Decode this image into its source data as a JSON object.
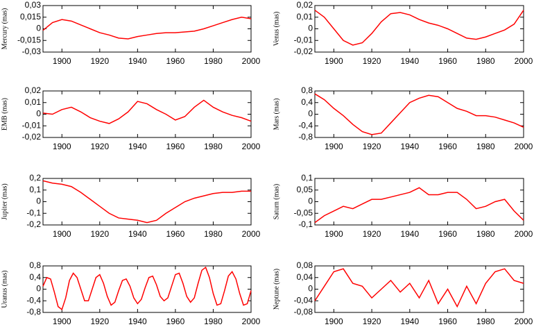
{
  "chart_data": [
    {
      "type": "line",
      "y_label": "Mercury (mas)",
      "xlim": [
        1890,
        2000
      ],
      "xticks": [
        1900,
        1920,
        1940,
        1960,
        1980,
        2000
      ],
      "ylim": [
        -0.03,
        0.03
      ],
      "yticks": [
        {
          "value": 0.03,
          "label": "0,03"
        },
        {
          "value": 0.015,
          "label": "0,015"
        },
        0,
        {
          "value": -0.015,
          "label": "-0,015"
        },
        {
          "value": -0.03,
          "label": "-0,03"
        }
      ],
      "x": [
        1890,
        1895,
        1900,
        1905,
        1910,
        1915,
        1920,
        1925,
        1930,
        1935,
        1940,
        1945,
        1950,
        1955,
        1960,
        1965,
        1970,
        1975,
        1980,
        1985,
        1990,
        1995,
        2000
      ],
      "series": [
        {
          "color": "#ff0000",
          "values": [
            -0.002,
            0.008,
            0.012,
            0.01,
            0.005,
            0,
            -0.005,
            -0.008,
            -0.012,
            -0.013,
            -0.01,
            -0.008,
            -0.006,
            -0.005,
            -0.005,
            -0.004,
            -0.003,
            0,
            0.004,
            0.008,
            0.012,
            0.015,
            0.013
          ]
        }
      ]
    },
    {
      "type": "line",
      "y_label": "Venus (mas)",
      "xlim": [
        1890,
        2000
      ],
      "xticks": [
        1900,
        1920,
        1940,
        1960,
        1980,
        2000
      ],
      "ylim": [
        -0.02,
        0.02
      ],
      "yticks": [
        {
          "value": 0.02,
          "label": "0,02"
        },
        {
          "value": 0.01,
          "label": "0,01"
        },
        0,
        {
          "value": -0.01,
          "label": "-0,01"
        },
        {
          "value": -0.02,
          "label": "-0,02"
        }
      ],
      "x": [
        1890,
        1895,
        1900,
        1905,
        1910,
        1915,
        1920,
        1925,
        1930,
        1935,
        1940,
        1945,
        1950,
        1955,
        1960,
        1965,
        1970,
        1975,
        1980,
        1985,
        1990,
        1995,
        2000
      ],
      "series": [
        {
          "color": "#ff0000",
          "values": [
            0.016,
            0.01,
            0,
            -0.01,
            -0.014,
            -0.012,
            -0.004,
            0.006,
            0.013,
            0.014,
            0.012,
            0.008,
            0.005,
            0.003,
            0,
            -0.004,
            -0.008,
            -0.009,
            -0.007,
            -0.004,
            -0.001,
            0.004,
            0.016
          ]
        }
      ]
    },
    {
      "type": "line",
      "y_label": "EMB (mas)",
      "xlim": [
        1890,
        2000
      ],
      "xticks": [
        1900,
        1920,
        1940,
        1960,
        1980,
        2000
      ],
      "ylim": [
        -0.02,
        0.02
      ],
      "yticks": [
        {
          "value": 0.02,
          "label": "0,02"
        },
        {
          "value": 0.01,
          "label": "0,01"
        },
        0,
        {
          "value": -0.01,
          "label": "-0,01"
        },
        {
          "value": -0.02,
          "label": "-0,02"
        }
      ],
      "x": [
        1890,
        1895,
        1900,
        1905,
        1910,
        1915,
        1920,
        1925,
        1930,
        1935,
        1940,
        1945,
        1950,
        1955,
        1960,
        1965,
        1970,
        1975,
        1980,
        1985,
        1990,
        1995,
        2000
      ],
      "series": [
        {
          "color": "#ff0000",
          "values": [
            0.001,
            0,
            0.004,
            0.006,
            0.002,
            -0.003,
            -0.006,
            -0.008,
            -0.004,
            0.002,
            0.011,
            0.009,
            0.004,
            0,
            -0.005,
            -0.002,
            0.006,
            0.012,
            0.006,
            0.002,
            -0.001,
            -0.003,
            -0.006
          ]
        }
      ]
    },
    {
      "type": "line",
      "y_label": "Mars (mas)",
      "xlim": [
        1890,
        2000
      ],
      "xticks": [
        1900,
        1920,
        1940,
        1960,
        1980,
        2000
      ],
      "ylim": [
        -0.8,
        0.8
      ],
      "yticks": [
        {
          "value": 0.8,
          "label": "0,8"
        },
        {
          "value": 0.4,
          "label": "0,4"
        },
        0,
        {
          "value": -0.4,
          "label": "-0,4"
        },
        {
          "value": -0.8,
          "label": "-0,8"
        }
      ],
      "x": [
        1890,
        1895,
        1900,
        1905,
        1910,
        1915,
        1920,
        1925,
        1930,
        1935,
        1940,
        1945,
        1950,
        1955,
        1960,
        1965,
        1970,
        1975,
        1980,
        1985,
        1990,
        1995,
        2000
      ],
      "series": [
        {
          "color": "#ff0000",
          "values": [
            0.7,
            0.5,
            0.2,
            -0.05,
            -0.35,
            -0.6,
            -0.7,
            -0.65,
            -0.3,
            0.05,
            0.4,
            0.55,
            0.65,
            0.6,
            0.4,
            0.2,
            0.1,
            -0.05,
            -0.05,
            -0.1,
            -0.2,
            -0.3,
            -0.45
          ]
        }
      ]
    },
    {
      "type": "line",
      "y_label": "Jupiter (mas)",
      "xlim": [
        1890,
        2000
      ],
      "xticks": [
        1900,
        1920,
        1940,
        1960,
        1980,
        2000
      ],
      "ylim": [
        -0.2,
        0.2
      ],
      "yticks": [
        {
          "value": 0.2,
          "label": "0,2"
        },
        {
          "value": 0.1,
          "label": "0,1"
        },
        0,
        {
          "value": -0.1,
          "label": "-0,1"
        },
        {
          "value": -0.2,
          "label": "-0,2"
        }
      ],
      "x": [
        1890,
        1895,
        1900,
        1905,
        1910,
        1915,
        1920,
        1925,
        1930,
        1935,
        1940,
        1945,
        1950,
        1955,
        1960,
        1965,
        1970,
        1975,
        1980,
        1985,
        1990,
        1995,
        2000
      ],
      "series": [
        {
          "color": "#ff0000",
          "values": [
            0.18,
            0.16,
            0.15,
            0.13,
            0.08,
            0.02,
            -0.04,
            -0.1,
            -0.14,
            -0.15,
            -0.16,
            -0.18,
            -0.16,
            -0.1,
            -0.05,
            0,
            0.03,
            0.05,
            0.07,
            0.08,
            0.08,
            0.09,
            0.09
          ]
        }
      ]
    },
    {
      "type": "line",
      "y_label": "Saturn (mas)",
      "xlim": [
        1890,
        2000
      ],
      "xticks": [
        1900,
        1920,
        1940,
        1960,
        1980,
        2000
      ],
      "ylim": [
        -0.1,
        0.1
      ],
      "yticks": [
        {
          "value": 0.1,
          "label": "0,1"
        },
        {
          "value": 0.05,
          "label": "0,05"
        },
        0,
        {
          "value": -0.05,
          "label": "-0,05"
        },
        {
          "value": -0.1,
          "label": "-0,1"
        }
      ],
      "x": [
        1890,
        1895,
        1900,
        1905,
        1910,
        1915,
        1920,
        1925,
        1930,
        1935,
        1940,
        1945,
        1950,
        1955,
        1960,
        1965,
        1970,
        1975,
        1980,
        1985,
        1990,
        1995,
        2000
      ],
      "series": [
        {
          "color": "#ff0000",
          "values": [
            -0.09,
            -0.06,
            -0.04,
            -0.02,
            -0.03,
            -0.01,
            0.01,
            0.01,
            0.02,
            0.03,
            0.04,
            0.06,
            0.03,
            0.03,
            0.04,
            0.04,
            0.01,
            -0.03,
            -0.02,
            0,
            0.01,
            -0.04,
            -0.08
          ]
        }
      ]
    },
    {
      "type": "line",
      "y_label": "Uranus (mas)",
      "xlim": [
        1890,
        2000
      ],
      "xticks": [
        1900,
        1920,
        1940,
        1960,
        1980,
        2000
      ],
      "ylim": [
        -0.8,
        0.8
      ],
      "yticks": [
        {
          "value": 0.8,
          "label": "0,8"
        },
        {
          "value": 0.4,
          "label": "0,4"
        },
        0,
        {
          "value": -0.4,
          "label": "-0,4"
        },
        {
          "value": -0.8,
          "label": "-0,8"
        }
      ],
      "x": [
        1890,
        1892,
        1894,
        1896,
        1898,
        1900,
        1902,
        1904,
        1906,
        1908,
        1910,
        1912,
        1914,
        1916,
        1918,
        1920,
        1922,
        1924,
        1926,
        1928,
        1930,
        1932,
        1934,
        1936,
        1938,
        1940,
        1942,
        1944,
        1946,
        1948,
        1950,
        1952,
        1954,
        1956,
        1958,
        1960,
        1962,
        1964,
        1966,
        1968,
        1970,
        1972,
        1974,
        1976,
        1978,
        1980,
        1982,
        1984,
        1986,
        1988,
        1990,
        1992,
        1994,
        1996,
        1998,
        2000
      ],
      "series": [
        {
          "color": "#ff0000",
          "values": [
            0.1,
            0.4,
            0.35,
            -0.1,
            -0.6,
            -0.7,
            -0.3,
            0.3,
            0.55,
            0.4,
            0,
            -0.4,
            -0.4,
            0,
            0.4,
            0.5,
            0.2,
            -0.25,
            -0.55,
            -0.45,
            -0.05,
            0.3,
            0.35,
            0.1,
            -0.3,
            -0.5,
            -0.35,
            0.05,
            0.4,
            0.45,
            0.15,
            -0.25,
            -0.4,
            -0.3,
            0.1,
            0.5,
            0.55,
            0.2,
            -0.25,
            -0.45,
            -0.3,
            0.2,
            0.65,
            0.75,
            0.4,
            -0.15,
            -0.55,
            -0.5,
            -0.05,
            0.45,
            0.6,
            0.35,
            -0.15,
            -0.55,
            -0.5,
            -0.05
          ]
        }
      ]
    },
    {
      "type": "line",
      "y_label": "Neptune (mas)",
      "xlim": [
        1890,
        2000
      ],
      "xticks": [
        1900,
        1920,
        1940,
        1960,
        1980,
        2000
      ],
      "ylim": [
        -0.08,
        0.08
      ],
      "yticks": [
        {
          "value": 0.08,
          "label": "0,08"
        },
        {
          "value": 0.04,
          "label": "0,04"
        },
        0,
        {
          "value": -0.04,
          "label": "-0,04"
        },
        {
          "value": -0.08,
          "label": "-0,08"
        }
      ],
      "x": [
        1890,
        1895,
        1900,
        1905,
        1910,
        1915,
        1920,
        1925,
        1930,
        1935,
        1940,
        1945,
        1950,
        1955,
        1960,
        1965,
        1970,
        1975,
        1980,
        1985,
        1990,
        1995,
        2000
      ],
      "series": [
        {
          "color": "#ff0000",
          "values": [
            -0.04,
            0.01,
            0.06,
            0.07,
            0.02,
            0.01,
            -0.03,
            0,
            0.03,
            -0.01,
            0.02,
            -0.03,
            0.03,
            -0.05,
            0,
            -0.06,
            0.01,
            -0.05,
            0.02,
            0.06,
            0.07,
            0.03,
            0.02
          ]
        }
      ]
    }
  ]
}
